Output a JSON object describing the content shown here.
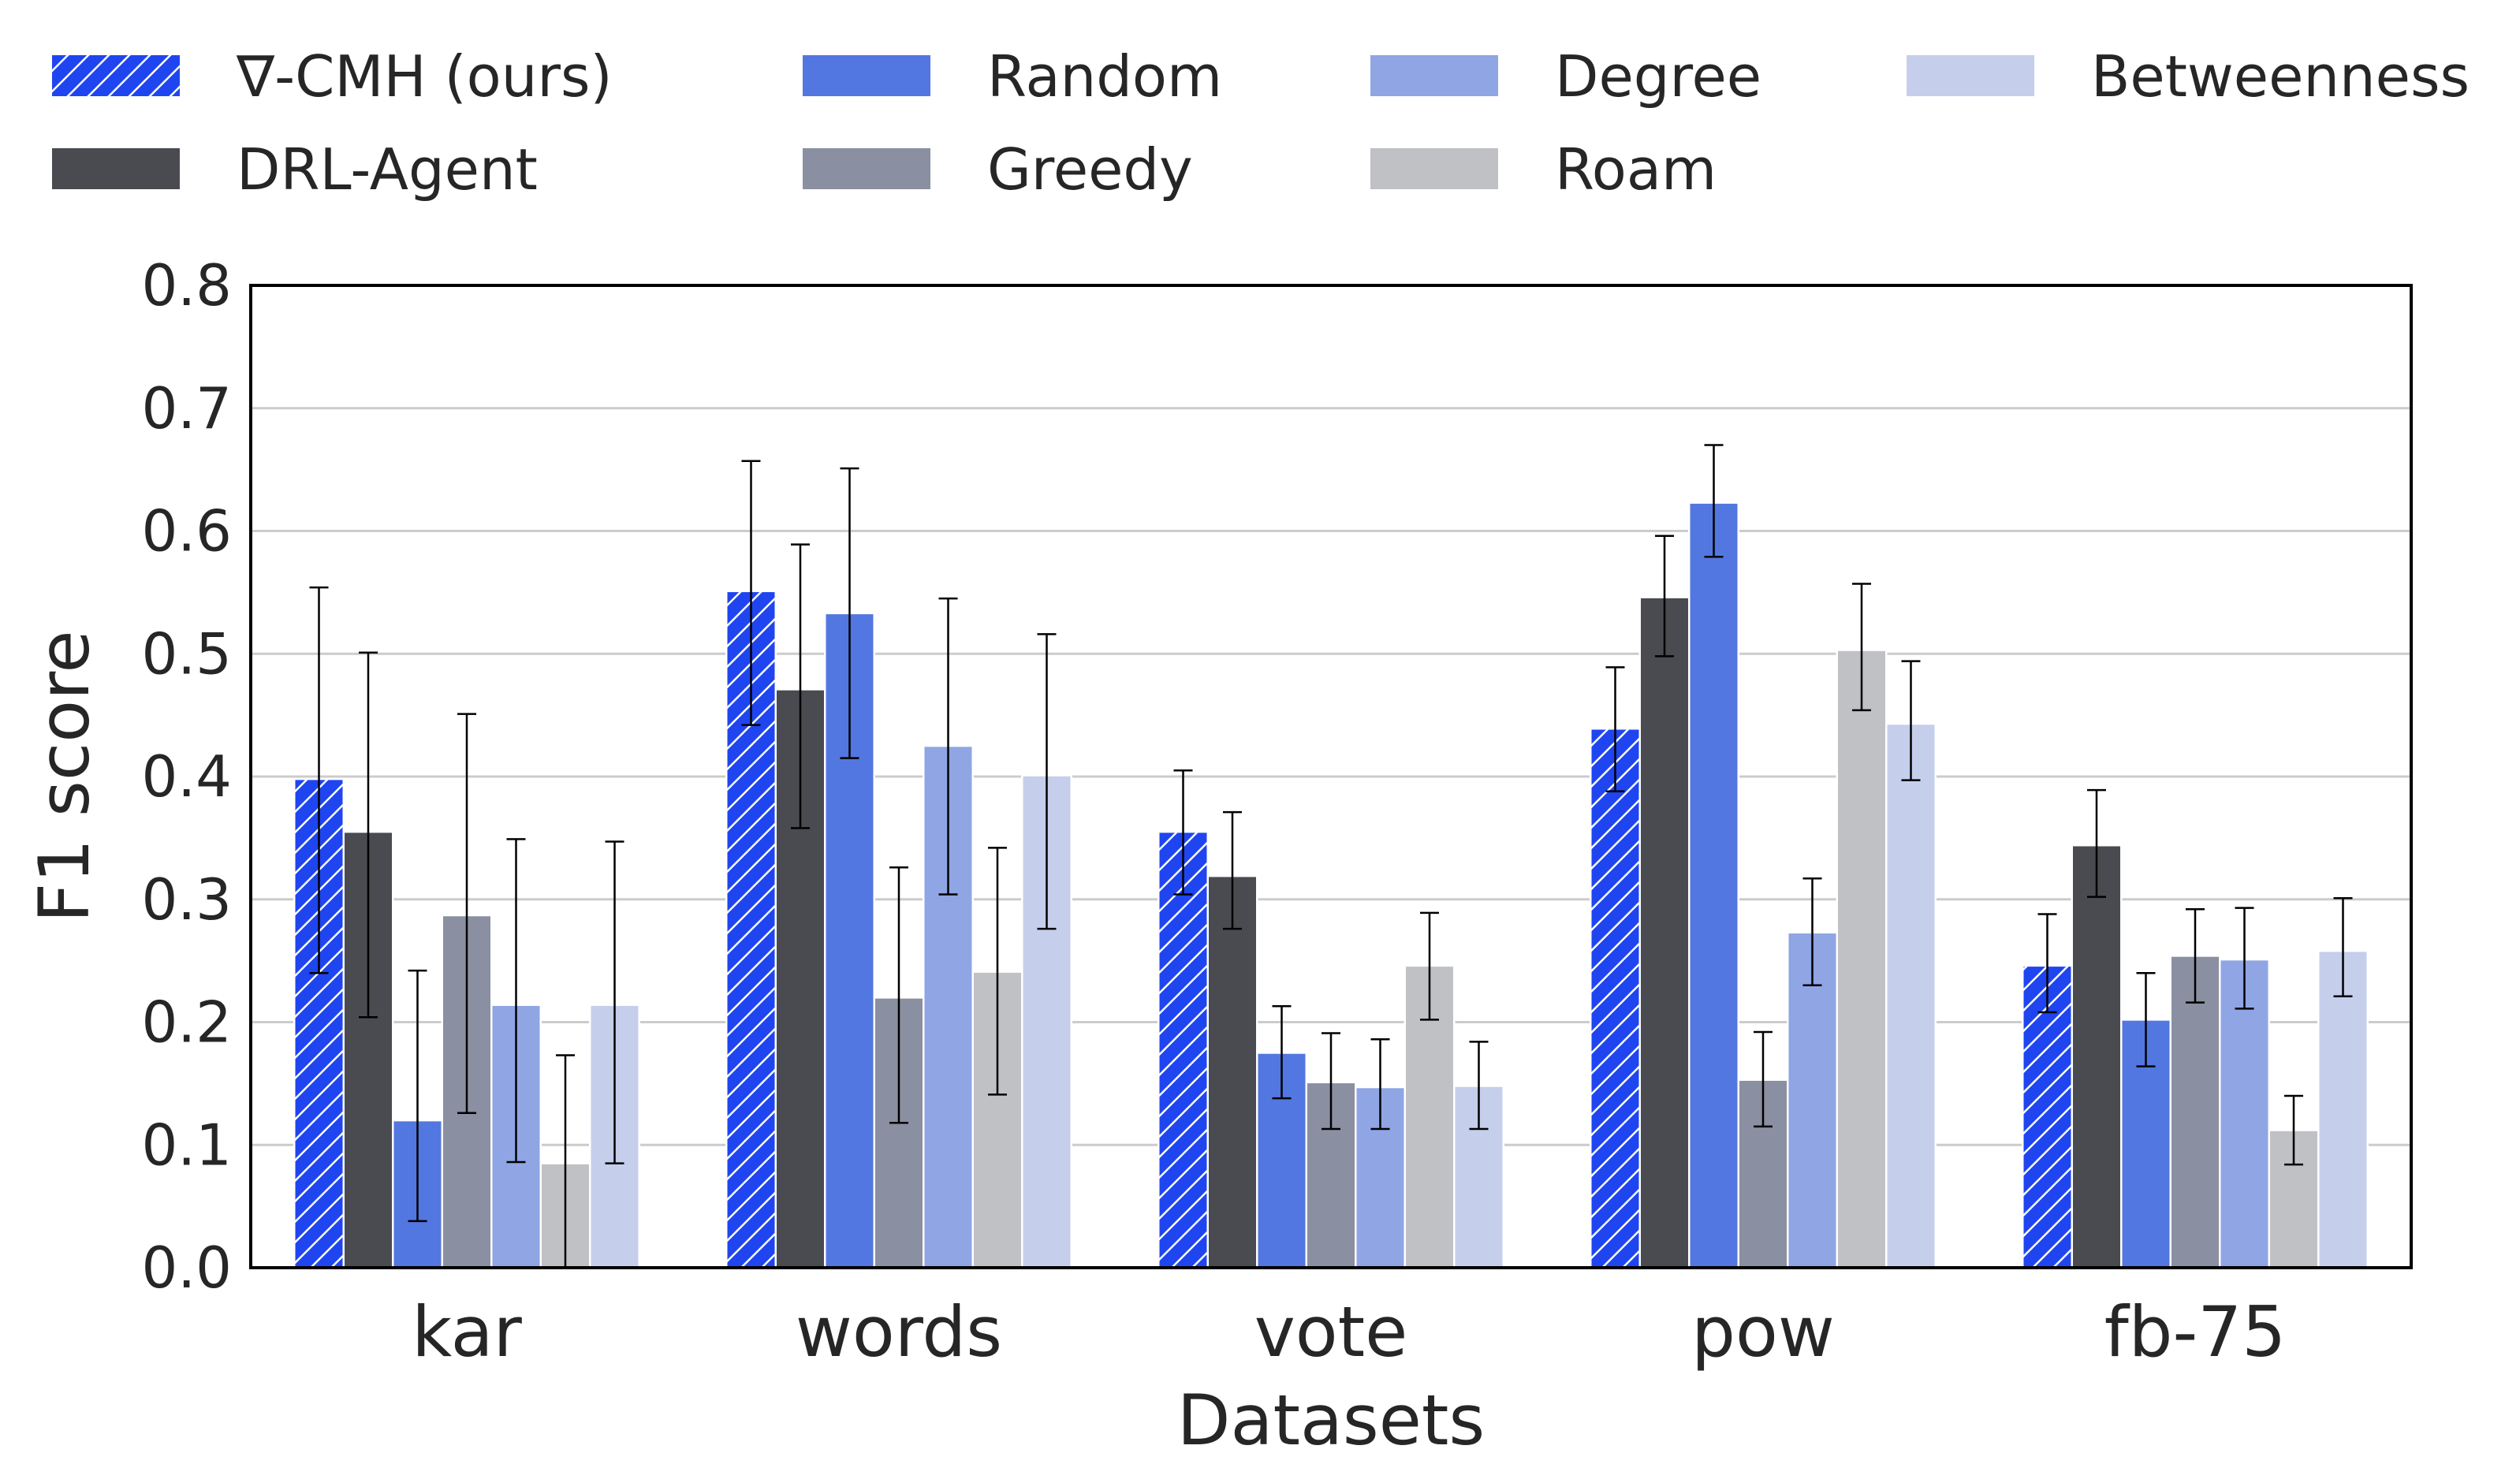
{
  "chart_data": {
    "type": "bar",
    "title": "",
    "xlabel": "Datasets",
    "ylabel": "F1 score",
    "ylim": [
      0,
      0.8
    ],
    "yticks": [
      "0.0",
      "0.1",
      "0.2",
      "0.3",
      "0.4",
      "0.5",
      "0.6",
      "0.7",
      "0.8"
    ],
    "grid": "horizontal",
    "legend_position": "top",
    "categories": [
      "kar",
      "words",
      "vote",
      "pow",
      "fb-75"
    ],
    "series": [
      {
        "name": "∇-CMH (ours)",
        "color": "#1f45f0",
        "hatch": true,
        "values": [
          0.398,
          0.551,
          0.355,
          0.439,
          0.246
        ],
        "error_low": [
          0.24,
          0.442,
          0.304,
          0.388,
          0.208
        ],
        "error_high": [
          0.554,
          0.657,
          0.405,
          0.489,
          0.288
        ]
      },
      {
        "name": "DRL-Agent",
        "color": "#4a4b50",
        "hatch": false,
        "values": [
          0.355,
          0.471,
          0.319,
          0.546,
          0.344
        ],
        "error_low": [
          0.204,
          0.358,
          0.276,
          0.498,
          0.302
        ],
        "error_high": [
          0.501,
          0.589,
          0.371,
          0.596,
          0.389
        ]
      },
      {
        "name": "Random",
        "color": "#5377e0",
        "hatch": false,
        "values": [
          0.12,
          0.533,
          0.175,
          0.623,
          0.202
        ],
        "error_low": [
          0.038,
          0.415,
          0.138,
          0.579,
          0.164
        ],
        "error_high": [
          0.242,
          0.651,
          0.213,
          0.67,
          0.24
        ]
      },
      {
        "name": "Greedy",
        "color": "#8a8fa1",
        "hatch": false,
        "values": [
          0.287,
          0.22,
          0.151,
          0.153,
          0.254
        ],
        "error_low": [
          0.126,
          0.118,
          0.113,
          0.115,
          0.216
        ],
        "error_high": [
          0.451,
          0.326,
          0.191,
          0.192,
          0.292
        ]
      },
      {
        "name": "Degree",
        "color": "#8fa5e4",
        "hatch": false,
        "values": [
          0.214,
          0.425,
          0.147,
          0.273,
          0.251
        ],
        "error_low": [
          0.086,
          0.304,
          0.113,
          0.23,
          0.211
        ],
        "error_high": [
          0.349,
          0.545,
          0.186,
          0.317,
          0.293
        ]
      },
      {
        "name": "Roam",
        "color": "#c0c1c4",
        "hatch": false,
        "values": [
          0.085,
          0.241,
          0.246,
          0.503,
          0.112
        ],
        "error_low": [
          0.0,
          0.141,
          0.202,
          0.454,
          0.084
        ],
        "error_high": [
          0.173,
          0.342,
          0.289,
          0.557,
          0.14
        ]
      },
      {
        "name": "Betweenness",
        "color": "#c5cfec",
        "hatch": false,
        "values": [
          0.214,
          0.401,
          0.148,
          0.443,
          0.258
        ],
        "error_low": [
          0.085,
          0.276,
          0.113,
          0.397,
          0.221
        ],
        "error_high": [
          0.347,
          0.516,
          0.184,
          0.494,
          0.301
        ]
      }
    ]
  }
}
